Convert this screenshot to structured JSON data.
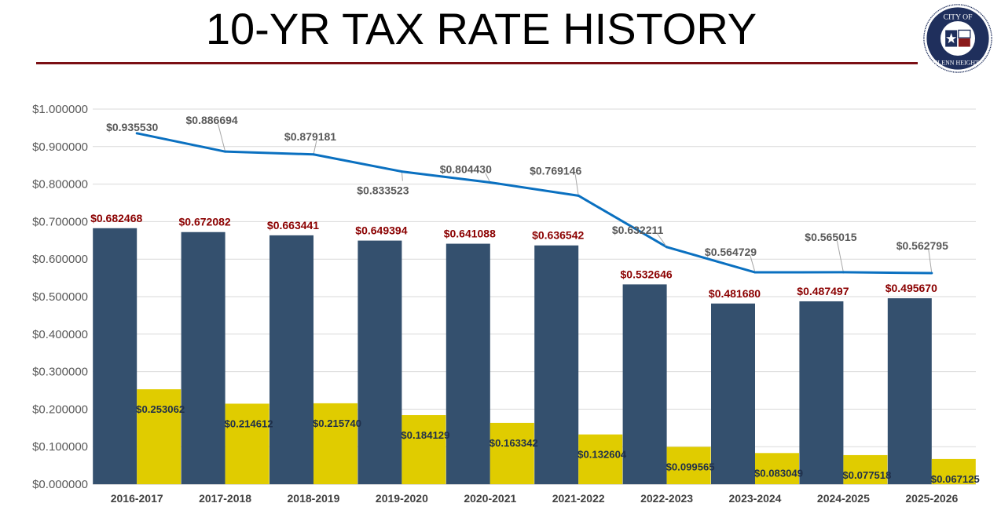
{
  "title": "10-YR TAX RATE HISTORY",
  "logo": {
    "text_top": "CITY OF",
    "text_bottom": "GLENN HEIGHTS",
    "colors": {
      "navy": "#1f2f5c",
      "red": "#8b1a1a"
    }
  },
  "chart_data": {
    "type": "bar+line",
    "title": "10-YR TAX RATE HISTORY",
    "categories": [
      "2016-2017",
      "2017-2018",
      "2018-2019",
      "2019-2020",
      "2020-2021",
      "2021-2022",
      "2022-2023",
      "2023-2024",
      "2024-2025",
      "2025-2026"
    ],
    "series": [
      {
        "type": "bar",
        "color": "#34506e",
        "label_color": "#8b0000",
        "values": [
          0.682468,
          0.672082,
          0.663441,
          0.649394,
          0.641088,
          0.636542,
          0.532646,
          0.48168,
          0.487497,
          0.49567
        ],
        "labels": [
          "$0.682468",
          "$0.672082",
          "$0.663441",
          "$0.649394",
          "$0.641088",
          "$0.636542",
          "$0.532646",
          "$0.481680",
          "$0.487497",
          "$0.495670"
        ]
      },
      {
        "type": "bar",
        "color": "#e0cc00",
        "label_color": "#1f2f4a",
        "values": [
          0.253062,
          0.214612,
          0.21574,
          0.184129,
          0.163342,
          0.132604,
          0.099565,
          0.083049,
          0.077518,
          0.067125
        ],
        "labels": [
          "$0.253062",
          "$0.214612",
          "$0.215740",
          "$0.184129",
          "$0.163342",
          "$0.132604",
          "$0.099565",
          "$0.083049",
          "$0.077518",
          "$0.067125"
        ]
      },
      {
        "type": "line",
        "color": "#0a70c0",
        "label_color": "#595959",
        "values": [
          0.93553,
          0.886694,
          0.879181,
          0.833523,
          0.80443,
          0.769146,
          0.632211,
          0.564729,
          0.565015,
          0.562795
        ],
        "labels": [
          "$0.935530",
          "$0.886694",
          "$0.879181",
          "$0.833523",
          "$0.804430",
          "$0.769146",
          "$0.632211",
          "$0.564729",
          "$0.565015",
          "$0.562795"
        ]
      }
    ],
    "ylim": [
      0,
      1.0
    ],
    "yticks": [
      "$0.000000",
      "$0.100000",
      "$0.200000",
      "$0.300000",
      "$0.400000",
      "$0.500000",
      "$0.600000",
      "$0.700000",
      "$0.800000",
      "$0.900000",
      "$1.000000"
    ],
    "grid": true,
    "legend": "none"
  }
}
